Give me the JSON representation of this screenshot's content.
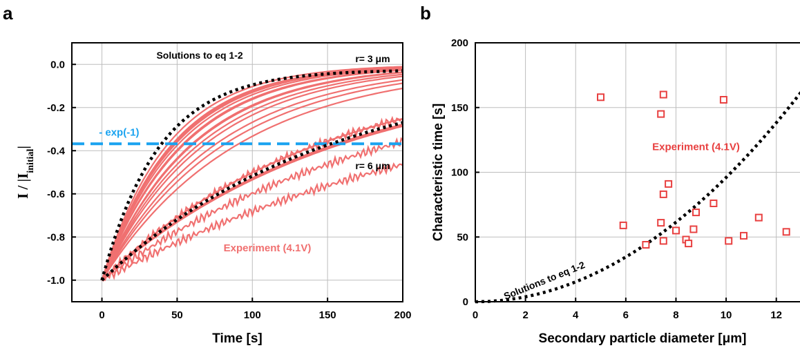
{
  "chart_data": [
    {
      "panel": "a",
      "type": "line",
      "xlabel": "Time [s]",
      "ylabel": "I / |I",
      "ylabel_sub": "initial",
      "ylabel_end": "|",
      "xlim": [
        -20,
        200
      ],
      "ylim": [
        -1.1,
        0.1
      ],
      "xticks": [
        0,
        50,
        100,
        150,
        200
      ],
      "yticks": [
        -1.0,
        -0.8,
        -0.6,
        -0.4,
        -0.2,
        0.0
      ],
      "ytick_labels": [
        "-1.0",
        "-0.8",
        "-0.6",
        "-0.4",
        "-0.2",
        "0.0"
      ],
      "grid": true,
      "colors": {
        "experiment": "#f07070",
        "model": "#000000",
        "reference": "#1aa3f0"
      },
      "annotations": {
        "model_title": "Solutions to eq 1-2",
        "r_small": "r= 3 μm",
        "r_large": "r= 6 μm",
        "reference_line": "- exp(-1)",
        "experiment": "Experiment (4.1V)"
      },
      "reference_line": {
        "y": -0.368,
        "style": "dashed"
      },
      "model_series": [
        {
          "name": "r= 3 μm",
          "tau": 38,
          "end": -0.03
        },
        {
          "name": "r= 6 μm",
          "tau": 150,
          "end": -0.27
        }
      ],
      "experiment_taus": [
        44,
        47,
        48,
        49,
        51,
        54,
        55,
        60,
        61,
        65,
        69,
        76,
        82,
        91,
        145,
        156,
        158,
        160
      ],
      "experiment_noisy_tau": [
        145,
        195,
        260
      ]
    },
    {
      "panel": "b",
      "type": "scatter",
      "xlabel": "Secondary particle diameter [μm]",
      "ylabel": "Characteristic time [s]",
      "xlim": [
        0,
        13
      ],
      "ylim": [
        0,
        200
      ],
      "xticks": [
        0,
        2,
        4,
        6,
        8,
        10,
        12
      ],
      "yticks": [
        0,
        50,
        100,
        150,
        200
      ],
      "grid": true,
      "colors": {
        "experiment": "#e84040",
        "model": "#000000"
      },
      "annotations": {
        "experiment": "Experiment (4.1V)",
        "model": "Solutions to eq 1-2"
      },
      "points": [
        {
          "x": 5.0,
          "y": 158
        },
        {
          "x": 7.5,
          "y": 160
        },
        {
          "x": 7.4,
          "y": 145
        },
        {
          "x": 9.9,
          "y": 156
        },
        {
          "x": 5.9,
          "y": 59
        },
        {
          "x": 6.8,
          "y": 44
        },
        {
          "x": 7.4,
          "y": 61
        },
        {
          "x": 7.5,
          "y": 47
        },
        {
          "x": 7.5,
          "y": 83
        },
        {
          "x": 7.7,
          "y": 91
        },
        {
          "x": 8.0,
          "y": 55
        },
        {
          "x": 8.4,
          "y": 48
        },
        {
          "x": 8.5,
          "y": 45
        },
        {
          "x": 8.7,
          "y": 56
        },
        {
          "x": 8.8,
          "y": 69
        },
        {
          "x": 9.5,
          "y": 76
        },
        {
          "x": 10.1,
          "y": 47
        },
        {
          "x": 10.7,
          "y": 51
        },
        {
          "x": 11.3,
          "y": 65
        },
        {
          "x": 12.4,
          "y": 54
        }
      ],
      "model_curve": {
        "form": "quadratic",
        "coefficient": 0.96,
        "x_range": [
          0,
          13
        ]
      }
    }
  ]
}
